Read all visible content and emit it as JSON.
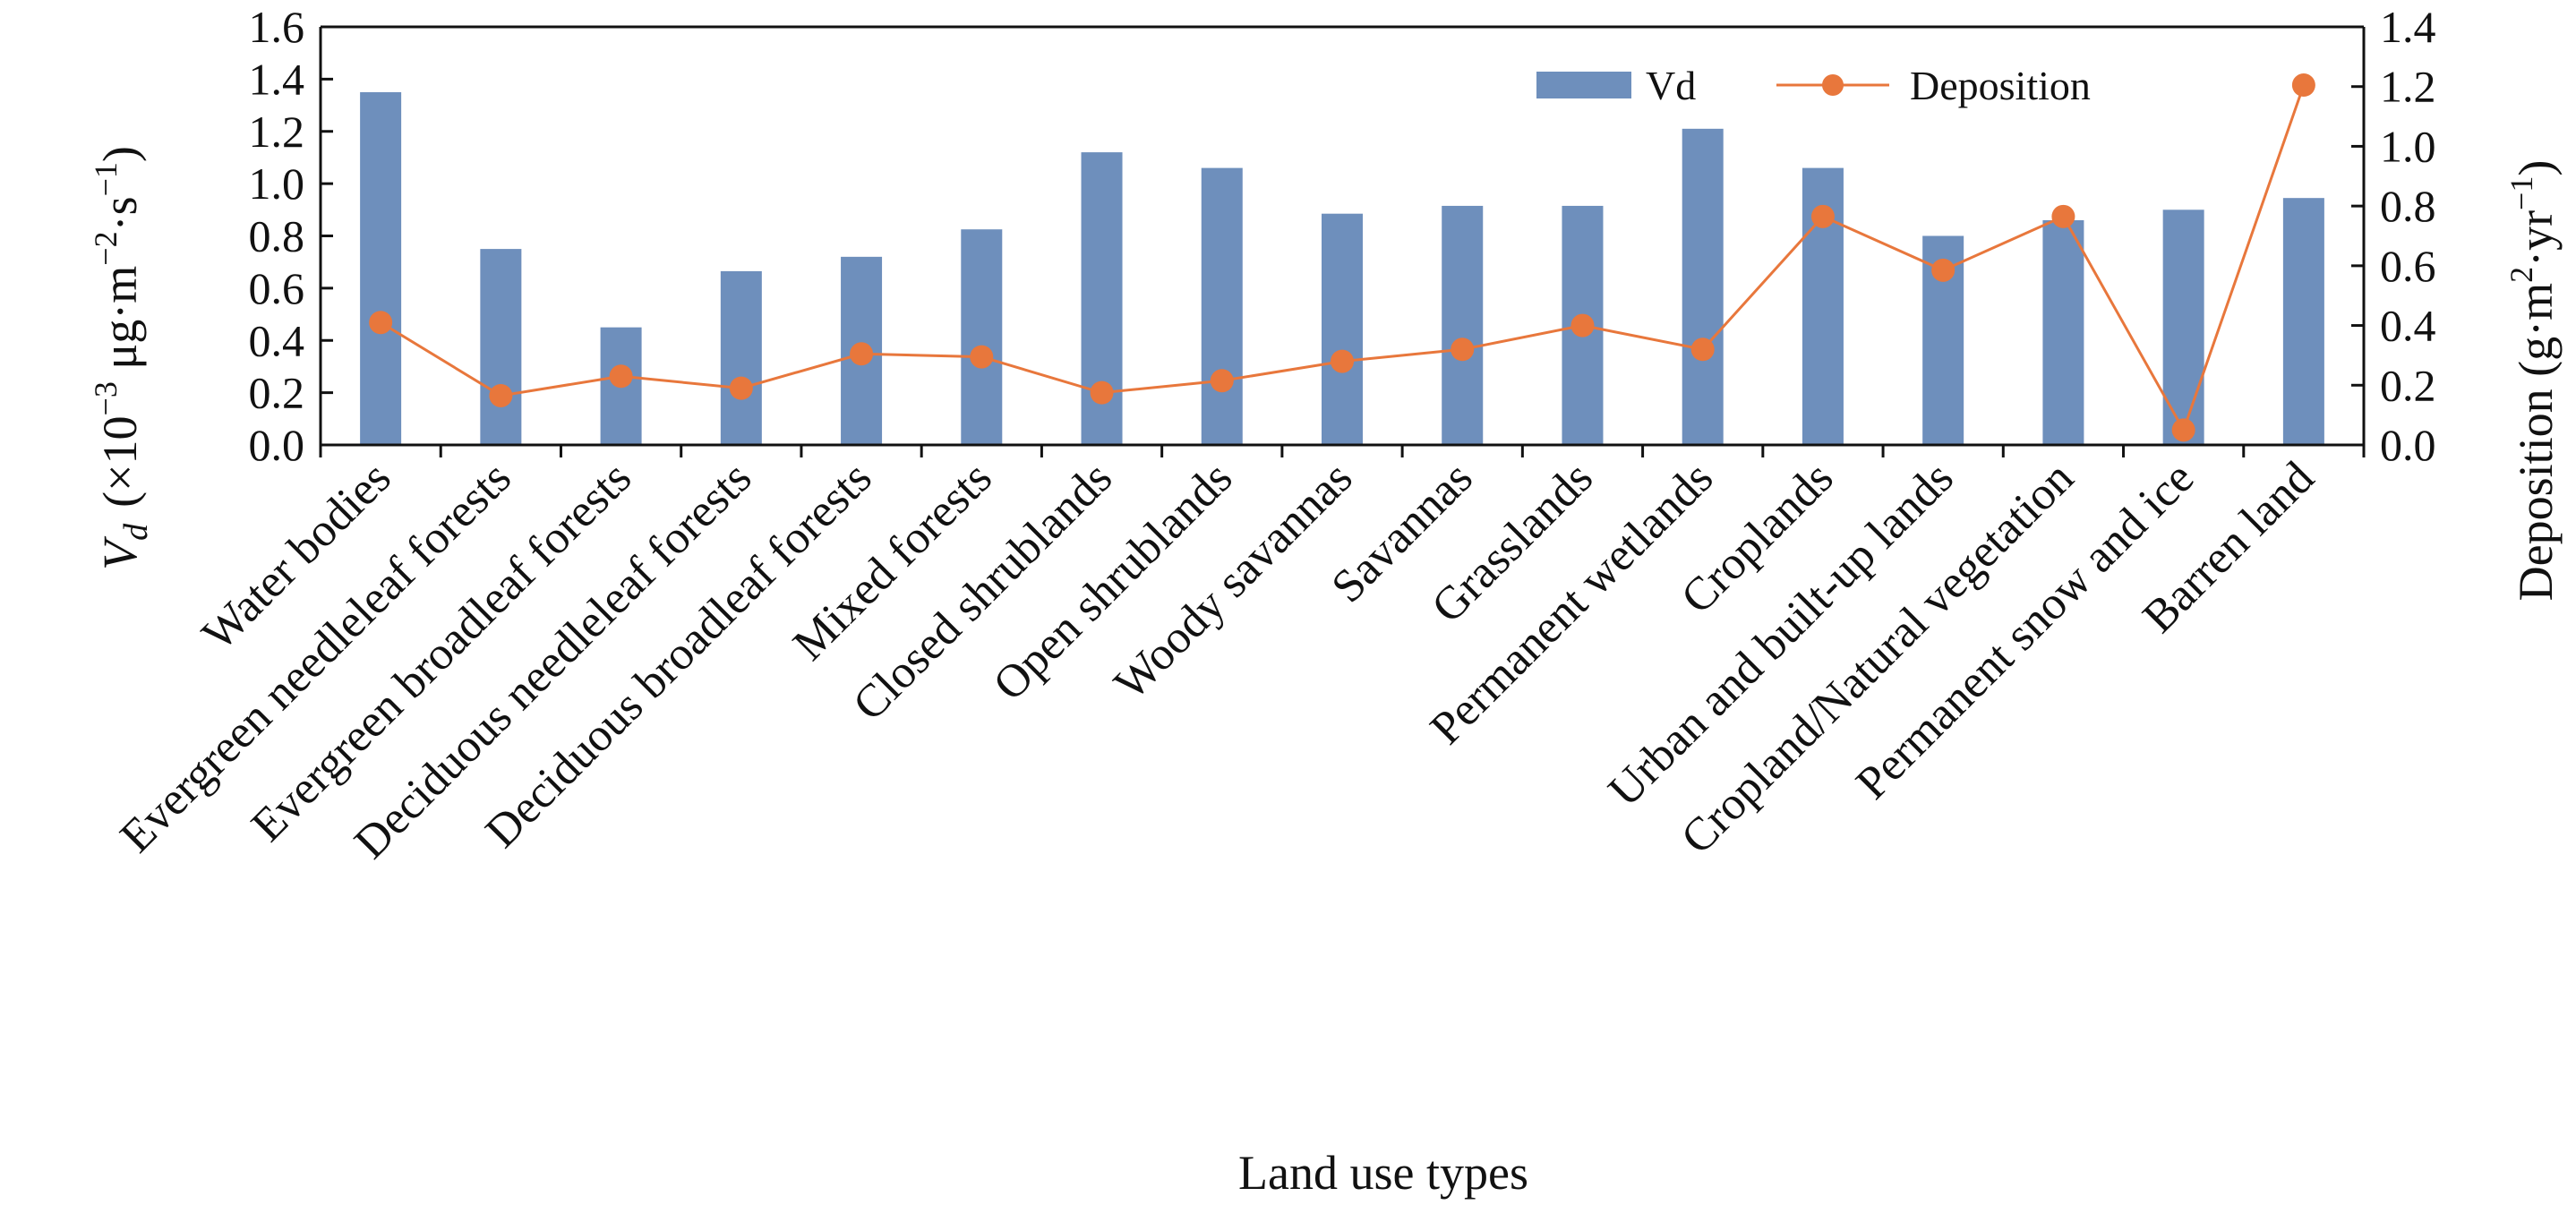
{
  "chart_data": {
    "type": "bar",
    "xlabel": "Land use types",
    "ylabel_left_main": "V",
    "ylabel_left_sub": "d",
    "ylabel_left_unit": "(×10",
    "ylabel_left_exp1": "−3",
    "ylabel_left_unit2": " μg·m",
    "ylabel_left_exp2": "−2",
    "ylabel_left_unit3": "·s",
    "ylabel_left_exp3": "−1",
    "ylabel_left_close": ")",
    "ylabel_right_main": "Deposition (g·m",
    "ylabel_right_exp1": "2",
    "ylabel_right_mid": "·yr",
    "ylabel_right_exp2": "−1",
    "ylabel_right_close": ")",
    "ylim_left": [
      0,
      1.6
    ],
    "ylim_right": [
      0,
      1.4
    ],
    "yticks_left": [
      "0.0",
      "0.2",
      "0.4",
      "0.6",
      "0.8",
      "1.0",
      "1.2",
      "1.4",
      "1.6"
    ],
    "yticks_right": [
      "0.0",
      "0.2",
      "0.4",
      "0.6",
      "0.8",
      "1.0",
      "1.2",
      "1.4"
    ],
    "grid": false,
    "legend_position": "top-right",
    "categories": [
      "Water bodies",
      "Evergreen needleleaf forests",
      "Evergreen broadleaf forests",
      "Deciduous needleleaf forests",
      "Deciduous broadleaf forests",
      "Mixed forests",
      "Closed shrublands",
      "Open shrublands",
      "Woody savannas",
      "Savannas",
      "Grasslands",
      "Permanent wetlands",
      "Croplands",
      "Urban and built-up lands",
      "Cropland/Natural vegetation",
      "Permanent snow and ice",
      "Barren land"
    ],
    "series": [
      {
        "name": "Vd",
        "type": "bar",
        "axis": "left",
        "color": "#6E8FBC",
        "values": [
          1.35,
          0.75,
          0.45,
          0.665,
          0.72,
          0.825,
          1.12,
          1.06,
          0.885,
          0.915,
          0.915,
          1.21,
          1.06,
          0.8,
          0.86,
          0.9,
          0.945
        ]
      },
      {
        "name": "Deposition",
        "type": "line",
        "axis": "right",
        "color": "#E8773C",
        "values": [
          0.41,
          0.165,
          0.23,
          0.19,
          0.305,
          0.295,
          0.175,
          0.215,
          0.28,
          0.32,
          0.4,
          0.32,
          0.765,
          0.585,
          0.765,
          0.05,
          1.205
        ]
      }
    ]
  }
}
